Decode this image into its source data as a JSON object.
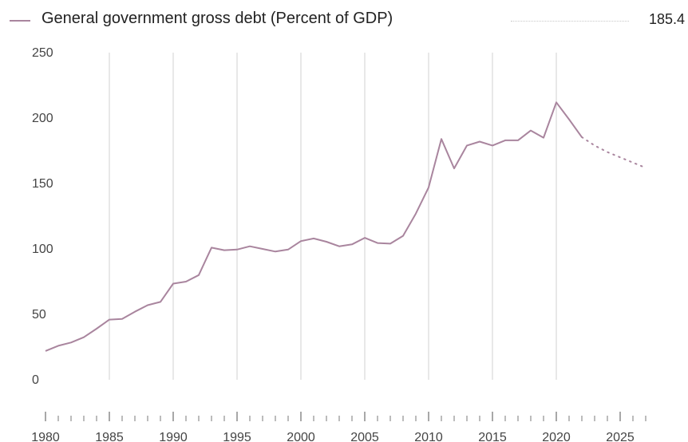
{
  "legend": {
    "series_label": "General government gross debt (Percent of GDP)",
    "latest_value": "185.4"
  },
  "colors": {
    "series": "#a9859e",
    "grid": "#d9d9d9",
    "tick": "#7a7a7a",
    "text": "#444444"
  },
  "chart_data": {
    "type": "line",
    "title": "",
    "xlabel": "",
    "ylabel": "",
    "ylim": [
      0,
      250
    ],
    "xlim": [
      1980,
      2027
    ],
    "yticks": [
      0,
      50,
      100,
      150,
      200,
      250
    ],
    "xticks": [
      1980,
      1985,
      1990,
      1995,
      2000,
      2005,
      2010,
      2015,
      2020,
      2025
    ],
    "grid_x_years": [
      1985,
      1990,
      1995,
      2000,
      2005,
      2010,
      2015,
      2020
    ],
    "grid": true,
    "legend_position": "top",
    "series": [
      {
        "name": "General government gross debt (Percent of GDP)",
        "actual": {
          "x": [
            1980,
            1981,
            1982,
            1983,
            1984,
            1985,
            1986,
            1987,
            1988,
            1989,
            1990,
            1991,
            1992,
            1993,
            1994,
            1995,
            1996,
            1997,
            1998,
            1999,
            2000,
            2001,
            2002,
            2003,
            2004,
            2005,
            2006,
            2007,
            2008,
            2009,
            2010,
            2011,
            2012,
            2013,
            2014,
            2015,
            2016,
            2017,
            2018,
            2019,
            2020,
            2021,
            2022
          ],
          "y": [
            22,
            26,
            28.5,
            32.5,
            39,
            46,
            46.5,
            52,
            57,
            59.5,
            73.5,
            75,
            80,
            101,
            99,
            99.5,
            102,
            100,
            98,
            99.5,
            106,
            108,
            105.5,
            102,
            103.5,
            108.5,
            104.5,
            104,
            110,
            127,
            147,
            184,
            161.5,
            179,
            182,
            179,
            183,
            183,
            190.5,
            185,
            212,
            199,
            185.4
          ]
        },
        "forecast": {
          "x": [
            2022,
            2023,
            2024,
            2025,
            2026,
            2027
          ],
          "y": [
            185.4,
            179,
            174,
            170,
            166,
            162
          ]
        }
      }
    ]
  }
}
